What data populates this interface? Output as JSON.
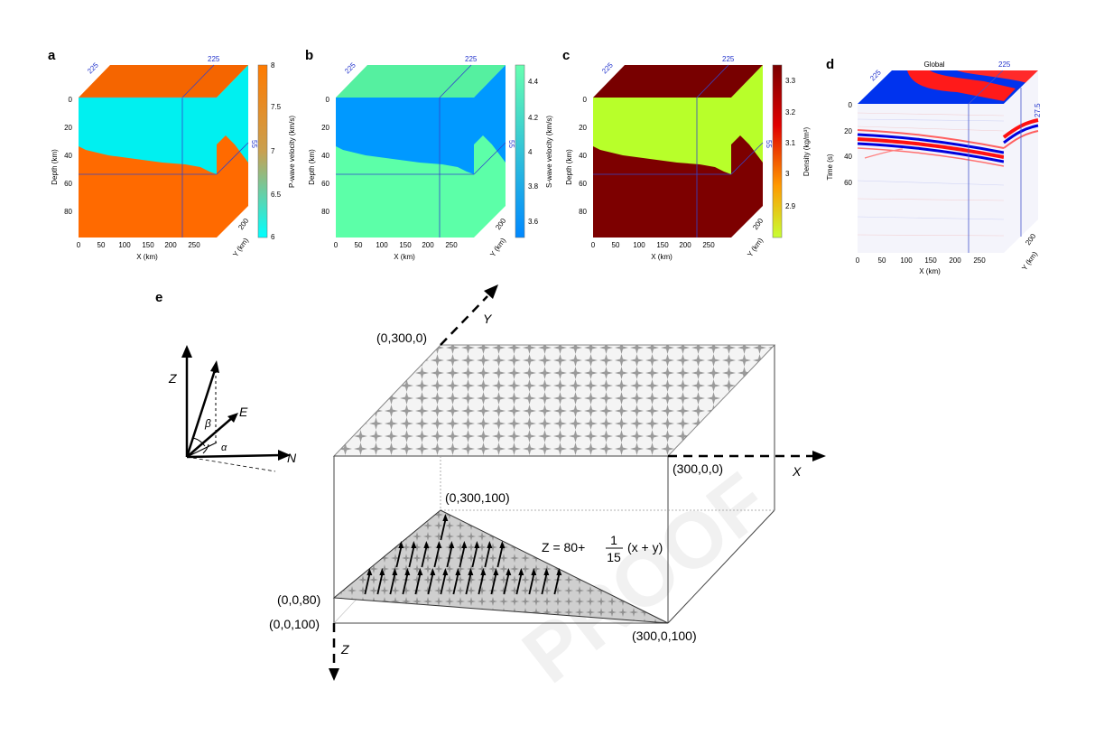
{
  "figure": {
    "watermark": "PROOF",
    "panels": [
      {
        "id": "a",
        "label": "a",
        "colorbar_label": "P-wave velocity (km/s)",
        "colorbar_ticks": [
          "8",
          "7.5",
          "7",
          "6.5",
          "6"
        ],
        "colorbar_colors": {
          "top": "#ff7a00",
          "bottom": "#00ffff"
        },
        "upper_color": "#00f0f0",
        "lower_color": "#ff6a00",
        "top_face_color": "#f56500",
        "ylabel": "Depth (km)",
        "xlabel": "X (km)",
        "side_label": "Y (km)",
        "yticks": [
          "0",
          "20",
          "40",
          "60",
          "80"
        ],
        "xticks": [
          "0",
          "50",
          "100",
          "150",
          "200",
          "250"
        ],
        "side_tick": "200",
        "slice_labels": [
          "225",
          "225",
          "55"
        ]
      },
      {
        "id": "b",
        "label": "b",
        "colorbar_label": "S-wave velocity (km/s)",
        "colorbar_ticks": [
          "4.4",
          "4.2",
          "4",
          "3.8",
          "3.6"
        ],
        "colorbar_colors": {
          "top": "#66ffb0",
          "bottom": "#0088ff"
        },
        "upper_color": "#0099ff",
        "lower_color": "#5cffa8",
        "top_face_color": "#55f0a0",
        "ylabel": "Depth (km)",
        "xlabel": "X (km)",
        "side_label": "Y (km)",
        "yticks": [
          "0",
          "20",
          "40",
          "60",
          "80"
        ],
        "xticks": [
          "0",
          "50",
          "100",
          "150",
          "200",
          "250"
        ],
        "side_tick": "200",
        "slice_labels": [
          "225",
          "225",
          "55"
        ]
      },
      {
        "id": "c",
        "label": "c",
        "colorbar_label": "Density (kg/m³)",
        "colorbar_ticks": [
          "3.3",
          "3.2",
          "3.1",
          "3",
          "2.9"
        ],
        "colorbar_colors": {
          "top": "#800000",
          "bottom": "#bfff33"
        },
        "upper_color": "#b8ff2a",
        "lower_color": "#7d0000",
        "top_face_color": "#780000",
        "ylabel": "Depth (km)",
        "xlabel": "X (km)",
        "side_label": "Y (km)",
        "yticks": [
          "0",
          "20",
          "40",
          "60",
          "80"
        ],
        "xticks": [
          "0",
          "50",
          "100",
          "150",
          "200",
          "250"
        ],
        "side_tick": "200",
        "slice_labels": [
          "225",
          "225",
          "55"
        ]
      },
      {
        "id": "d",
        "label": "d",
        "title": "Global",
        "ylabel": "Time (s)",
        "xlabel": "X (km)",
        "side_label": "Y (km)",
        "yticks": [
          "0",
          "20",
          "40",
          "60"
        ],
        "xticks": [
          "0",
          "50",
          "100",
          "150",
          "200",
          "250"
        ],
        "side_tick": "200",
        "slice_labels": [
          "225",
          "225",
          "27.5"
        ]
      }
    ],
    "panel_e": {
      "label": "e",
      "corner_labels": {
        "top_back": "(0,300,0)",
        "top_front_right": "(300,0,0)",
        "fault_back": "(0,300,100)",
        "left_upper": "(0,0,80)",
        "left_lower": "(0,0,100)",
        "right_bottom": "(300,0,100)"
      },
      "axis_labels": {
        "x": "X",
        "y": "Y",
        "z": "Z"
      },
      "equation": {
        "lhs": "Z = 80+",
        "num": "1",
        "den": "15",
        "rhs": "(x + y)"
      },
      "inset_labels": {
        "z": "Z",
        "e": "E",
        "n": "N",
        "beta": "β",
        "alpha": "α"
      }
    }
  }
}
